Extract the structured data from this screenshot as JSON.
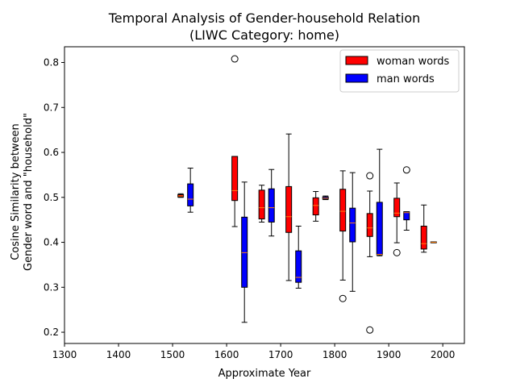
{
  "chart_data": {
    "type": "boxplot",
    "title_line1": "Temporal Analysis of Gender-household Relation",
    "title_line2": "(LIWC Category: home)",
    "xlabel": "Approximate Year",
    "ylabel_line1": "Cosine Similarity between",
    "ylabel_line2": "Gender word and \"household\"",
    "xlim": [
      1300,
      2040
    ],
    "ylim": [
      0.175,
      0.835
    ],
    "x_ticks": [
      "1300",
      "1400",
      "1500",
      "1600",
      "1700",
      "1800",
      "1900",
      "2000"
    ],
    "y_ticks": [
      "0.2",
      "0.3",
      "0.4",
      "0.5",
      "0.6",
      "0.7",
      "0.8"
    ],
    "legend_position": "top-right",
    "series": [
      {
        "name": "woman words",
        "color": "#ff0000",
        "boxes": [
          {
            "x": 1515,
            "whislo": 0.5,
            "q1": 0.501,
            "med": 0.503,
            "q3": 0.506,
            "whishi": 0.508,
            "fliers": []
          },
          {
            "x": 1615,
            "whislo": 0.435,
            "q1": 0.493,
            "med": 0.515,
            "q3": 0.591,
            "whishi": 0.591,
            "fliers": [
              0.808
            ]
          },
          {
            "x": 1665,
            "whislo": 0.445,
            "q1": 0.452,
            "med": 0.477,
            "q3": 0.516,
            "whishi": 0.527,
            "fliers": []
          },
          {
            "x": 1715,
            "whislo": 0.315,
            "q1": 0.422,
            "med": 0.457,
            "q3": 0.524,
            "whishi": 0.641,
            "fliers": []
          },
          {
            "x": 1765,
            "whislo": 0.447,
            "q1": 0.461,
            "med": 0.482,
            "q3": 0.499,
            "whishi": 0.513,
            "fliers": []
          },
          {
            "x": 1815,
            "whislo": 0.316,
            "q1": 0.425,
            "med": 0.469,
            "q3": 0.518,
            "whishi": 0.559,
            "fliers": [
              0.275
            ]
          },
          {
            "x": 1865,
            "whislo": 0.368,
            "q1": 0.413,
            "med": 0.432,
            "q3": 0.464,
            "whishi": 0.514,
            "fliers": [
              0.548,
              0.205
            ]
          },
          {
            "x": 1915,
            "whislo": 0.399,
            "q1": 0.457,
            "med": 0.465,
            "q3": 0.498,
            "whishi": 0.532,
            "fliers": [
              0.377
            ]
          },
          {
            "x": 1965,
            "whislo": 0.378,
            "q1": 0.385,
            "med": 0.397,
            "q3": 0.436,
            "whishi": 0.483,
            "fliers": []
          }
        ]
      },
      {
        "name": "man words",
        "color": "#0000ff",
        "boxes": [
          {
            "x": 1533,
            "whislo": 0.467,
            "q1": 0.481,
            "med": 0.496,
            "q3": 0.53,
            "whishi": 0.565,
            "fliers": []
          },
          {
            "x": 1633,
            "whislo": 0.222,
            "q1": 0.3,
            "med": 0.377,
            "q3": 0.456,
            "whishi": 0.534,
            "fliers": []
          },
          {
            "x": 1683,
            "whislo": 0.414,
            "q1": 0.445,
            "med": 0.477,
            "q3": 0.519,
            "whishi": 0.562,
            "fliers": []
          },
          {
            "x": 1733,
            "whislo": 0.298,
            "q1": 0.311,
            "med": 0.322,
            "q3": 0.381,
            "whishi": 0.436,
            "fliers": []
          },
          {
            "x": 1783,
            "whislo": 0.495,
            "q1": 0.496,
            "med": 0.498,
            "q3": 0.501,
            "whishi": 0.503,
            "fliers": []
          },
          {
            "x": 1833,
            "whislo": 0.291,
            "q1": 0.401,
            "med": 0.443,
            "q3": 0.476,
            "whishi": 0.555,
            "fliers": []
          },
          {
            "x": 1883,
            "whislo": 0.37,
            "q1": 0.372,
            "med": 0.373,
            "q3": 0.489,
            "whishi": 0.607,
            "fliers": []
          },
          {
            "x": 1933,
            "whislo": 0.427,
            "q1": 0.45,
            "med": 0.466,
            "q3": 0.468,
            "whishi": 0.468,
            "fliers": [
              0.561
            ]
          },
          {
            "x": 1983,
            "whislo": 0.399,
            "q1": 0.399,
            "med": 0.4,
            "q3": 0.401,
            "whishi": 0.401,
            "fliers": []
          }
        ]
      }
    ],
    "median_color": "#ff7f0e"
  }
}
